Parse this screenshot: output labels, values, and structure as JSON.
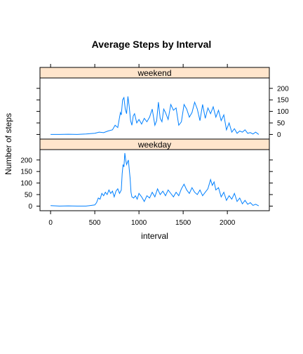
{
  "chart_data": {
    "type": "line",
    "title": "Average Steps by Interval",
    "xlabel": "interval",
    "ylabel": "Number of steps",
    "xlim": [
      -120,
      2475
    ],
    "ylim": [
      -20,
      245
    ],
    "x_ticks": [
      0,
      500,
      1000,
      1500,
      2000
    ],
    "y_ticks": [
      0,
      50,
      100,
      150,
      200
    ],
    "line_color": "#0080ff",
    "strip_color": "#ffe5cc",
    "panels": [
      {
        "name": "weekend",
        "x": [
          0,
          100,
          200,
          300,
          400,
          500,
          550,
          600,
          650,
          700,
          730,
          760,
          790,
          800,
          815,
          830,
          845,
          860,
          875,
          890,
          905,
          920,
          935,
          950,
          975,
          1000,
          1030,
          1060,
          1090,
          1120,
          1150,
          1180,
          1200,
          1220,
          1240,
          1260,
          1280,
          1300,
          1330,
          1360,
          1390,
          1420,
          1450,
          1480,
          1510,
          1540,
          1570,
          1600,
          1630,
          1660,
          1690,
          1720,
          1750,
          1780,
          1810,
          1840,
          1870,
          1900,
          1930,
          1960,
          1990,
          2020,
          2050,
          2080,
          2110,
          2140,
          2170,
          2200,
          2230,
          2260,
          2290,
          2320,
          2355
        ],
        "values": [
          0,
          0,
          1,
          0,
          2,
          5,
          10,
          8,
          15,
          20,
          40,
          30,
          95,
          85,
          150,
          160,
          110,
          90,
          165,
          120,
          60,
          40,
          80,
          90,
          50,
          65,
          45,
          70,
          55,
          75,
          110,
          40,
          60,
          140,
          70,
          55,
          110,
          95,
          65,
          130,
          105,
          115,
          40,
          55,
          130,
          110,
          75,
          95,
          140,
          110,
          60,
          130,
          70,
          115,
          90,
          120,
          75,
          105,
          60,
          85,
          20,
          50,
          10,
          25,
          5,
          15,
          10,
          20,
          5,
          8,
          2,
          10,
          0
        ]
      },
      {
        "name": "weekday",
        "x": [
          0,
          100,
          200,
          300,
          400,
          500,
          520,
          540,
          560,
          580,
          600,
          620,
          640,
          660,
          680,
          700,
          720,
          740,
          760,
          780,
          800,
          810,
          820,
          830,
          840,
          850,
          860,
          870,
          880,
          890,
          900,
          910,
          920,
          940,
          960,
          980,
          1000,
          1030,
          1060,
          1090,
          1120,
          1150,
          1180,
          1210,
          1240,
          1270,
          1300,
          1330,
          1360,
          1390,
          1420,
          1450,
          1480,
          1510,
          1540,
          1570,
          1600,
          1630,
          1660,
          1690,
          1720,
          1750,
          1780,
          1810,
          1830,
          1850,
          1870,
          1900,
          1930,
          1960,
          1990,
          2020,
          2050,
          2080,
          2110,
          2140,
          2170,
          2200,
          2230,
          2260,
          2290,
          2320,
          2355
        ],
        "values": [
          2,
          0,
          1,
          0,
          0,
          5,
          15,
          35,
          30,
          55,
          45,
          60,
          50,
          70,
          55,
          65,
          40,
          65,
          75,
          55,
          70,
          140,
          180,
          170,
          230,
          200,
          180,
          190,
          200,
          160,
          120,
          60,
          40,
          35,
          45,
          30,
          55,
          40,
          20,
          45,
          35,
          60,
          40,
          75,
          50,
          65,
          45,
          70,
          55,
          40,
          60,
          45,
          75,
          95,
          70,
          55,
          80,
          60,
          50,
          70,
          45,
          60,
          75,
          115,
          90,
          105,
          70,
          80,
          40,
          60,
          25,
          45,
          30,
          55,
          20,
          35,
          10,
          25,
          8,
          15,
          3,
          8,
          1
        ]
      }
    ]
  }
}
